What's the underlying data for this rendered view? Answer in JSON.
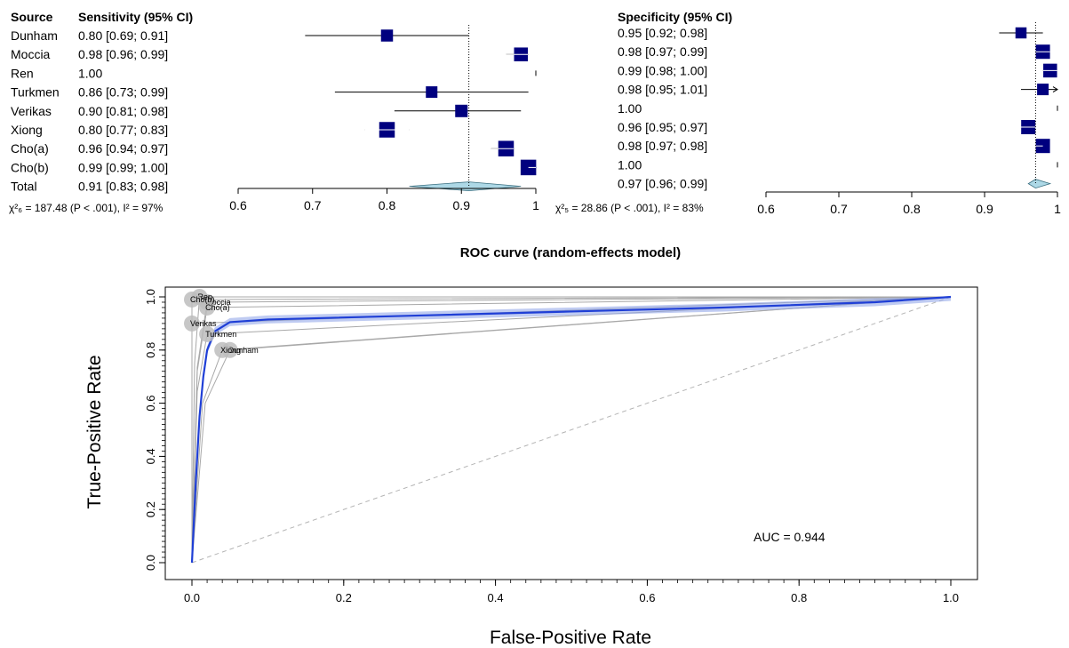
{
  "forest": {
    "source_header": "Source",
    "sens_header": "Sensitivity (95% CI)",
    "spec_header": "Specificity (95% CI)",
    "sens_stat": "χ²₆ = 187.48 (P < .001), I² = 97%",
    "spec_stat": "χ²₅ = 28.86 (P < .001), I² = 83%"
  },
  "roc": {
    "title": "ROC curve (random-effects model)",
    "xlabel": "False-Positive Rate",
    "ylabel": "True-Positive Rate",
    "auc_text": "AUC = 0.944"
  },
  "chart_data": [
    {
      "type": "forest",
      "panel": "sensitivity",
      "xlim": [
        0.6,
        1.0
      ],
      "xticks": [
        "0.6",
        "0.7",
        "0.8",
        "0.9",
        "1"
      ],
      "pooled_line": 0.91,
      "studies": [
        {
          "source": "Dunham",
          "text": "0.80 [0.69; 0.91]",
          "est": 0.8,
          "lo": 0.69,
          "hi": 0.91,
          "weight": 0.55
        },
        {
          "source": "Moccia",
          "text": "0.98 [0.96; 0.99]",
          "est": 0.98,
          "lo": 0.96,
          "hi": 0.99,
          "weight": 0.75
        },
        {
          "source": "Ren",
          "text": "1.00",
          "est": 1.0,
          "lo": 1.0,
          "hi": 1.0,
          "weight": 0
        },
        {
          "source": "Turkmen",
          "text": "0.86 [0.73; 0.99]",
          "est": 0.86,
          "lo": 0.73,
          "hi": 0.99,
          "weight": 0.5
        },
        {
          "source": "Verikas",
          "text": "0.90 [0.81; 0.98]",
          "est": 0.9,
          "lo": 0.81,
          "hi": 0.98,
          "weight": 0.6
        },
        {
          "source": "Xiong",
          "text": "0.80 [0.77; 0.83]",
          "est": 0.8,
          "lo": 0.77,
          "hi": 0.83,
          "weight": 0.95
        },
        {
          "source": "Cho(a)",
          "text": "0.96 [0.94; 0.97]",
          "est": 0.96,
          "lo": 0.94,
          "hi": 0.97,
          "weight": 0.95
        },
        {
          "source": "Cho(b)",
          "text": "0.99 [0.99; 1.00]",
          "est": 0.99,
          "lo": 0.99,
          "hi": 1.0,
          "weight": 0.95
        },
        {
          "source": "Total",
          "text": "0.91 [0.83; 0.98]",
          "est": 0.91,
          "lo": 0.83,
          "hi": 0.98,
          "total": true
        }
      ]
    },
    {
      "type": "forest",
      "panel": "specificity",
      "xlim": [
        0.6,
        1.0
      ],
      "xticks": [
        "0.6",
        "0.7",
        "0.8",
        "0.9",
        "1"
      ],
      "pooled_line": 0.97,
      "studies": [
        {
          "source": "Dunham",
          "text": "0.95 [0.92; 0.98]",
          "est": 0.95,
          "lo": 0.92,
          "hi": 0.98,
          "weight": 0.45
        },
        {
          "source": "Moccia",
          "text": "0.98 [0.97; 0.99]",
          "est": 0.98,
          "lo": 0.97,
          "hi": 0.99,
          "weight": 0.8
        },
        {
          "source": "Ren",
          "text": "0.99 [0.98; 1.00]",
          "est": 0.99,
          "lo": 0.98,
          "hi": 1.0,
          "weight": 0.75
        },
        {
          "source": "Turkmen",
          "text": "0.98 [0.95; 1.01]",
          "est": 0.98,
          "lo": 0.95,
          "hi": 1.01,
          "weight": 0.5,
          "arrow": true
        },
        {
          "source": "Verikas",
          "text": "1.00",
          "est": 1.0,
          "lo": 1.0,
          "hi": 1.0,
          "weight": 0
        },
        {
          "source": "Xiong",
          "text": "0.96 [0.95; 0.97]",
          "est": 0.96,
          "lo": 0.95,
          "hi": 0.97,
          "weight": 0.8
        },
        {
          "source": "Cho(a)",
          "text": "0.98 [0.97; 0.98]",
          "est": 0.98,
          "lo": 0.97,
          "hi": 0.98,
          "weight": 0.8
        },
        {
          "source": "Cho(b)",
          "text": "1.00",
          "est": 1.0,
          "lo": 1.0,
          "hi": 1.0,
          "weight": 0
        },
        {
          "source": "Total",
          "text": "0.97 [0.96; 0.99]",
          "est": 0.97,
          "lo": 0.96,
          "hi": 0.99,
          "total": true
        }
      ]
    },
    {
      "type": "line",
      "panel": "roc",
      "xlim": [
        0,
        1
      ],
      "ylim": [
        0,
        1
      ],
      "xticks": [
        "0.0",
        "0.2",
        "0.4",
        "0.6",
        "0.8",
        "1.0"
      ],
      "yticks": [
        "0.0",
        "0.2",
        "0.4",
        "0.6",
        "0.8",
        "1.0"
      ],
      "auc": 0.944,
      "summary_curve": [
        [
          0,
          0
        ],
        [
          0.005,
          0.3
        ],
        [
          0.01,
          0.55
        ],
        [
          0.015,
          0.7
        ],
        [
          0.02,
          0.8
        ],
        [
          0.03,
          0.87
        ],
        [
          0.05,
          0.905
        ],
        [
          0.1,
          0.915
        ],
        [
          0.3,
          0.93
        ],
        [
          0.5,
          0.945
        ],
        [
          0.7,
          0.96
        ],
        [
          0.9,
          0.98
        ],
        [
          1,
          1
        ]
      ],
      "conf_band": {
        "upper_offset": 0.015,
        "lower_offset": 0.015
      },
      "study_points": [
        {
          "label": "Dunham",
          "fpr": 0.05,
          "tpr": 0.8
        },
        {
          "label": "Moccia",
          "fpr": 0.02,
          "tpr": 0.98
        },
        {
          "label": "Ren",
          "fpr": 0.01,
          "tpr": 1.0
        },
        {
          "label": "Turkmen",
          "fpr": 0.02,
          "tpr": 0.86
        },
        {
          "label": "Verikas",
          "fpr": 0.0,
          "tpr": 0.9
        },
        {
          "label": "Xiong",
          "fpr": 0.04,
          "tpr": 0.8
        },
        {
          "label": "Cho(a)",
          "fpr": 0.02,
          "tpr": 0.96
        },
        {
          "label": "Cho(b)",
          "fpr": 0.0,
          "tpr": 0.99
        }
      ],
      "point_color": "#bdbdbd",
      "summary_color": "#1f3fd6",
      "band_color": "#8aa0e8",
      "study_curve_color": "#a8a8a8",
      "diagonal_color": "#b4b4b4",
      "marker_color": "#00007f",
      "diamond_color": "#add8e6"
    }
  ]
}
